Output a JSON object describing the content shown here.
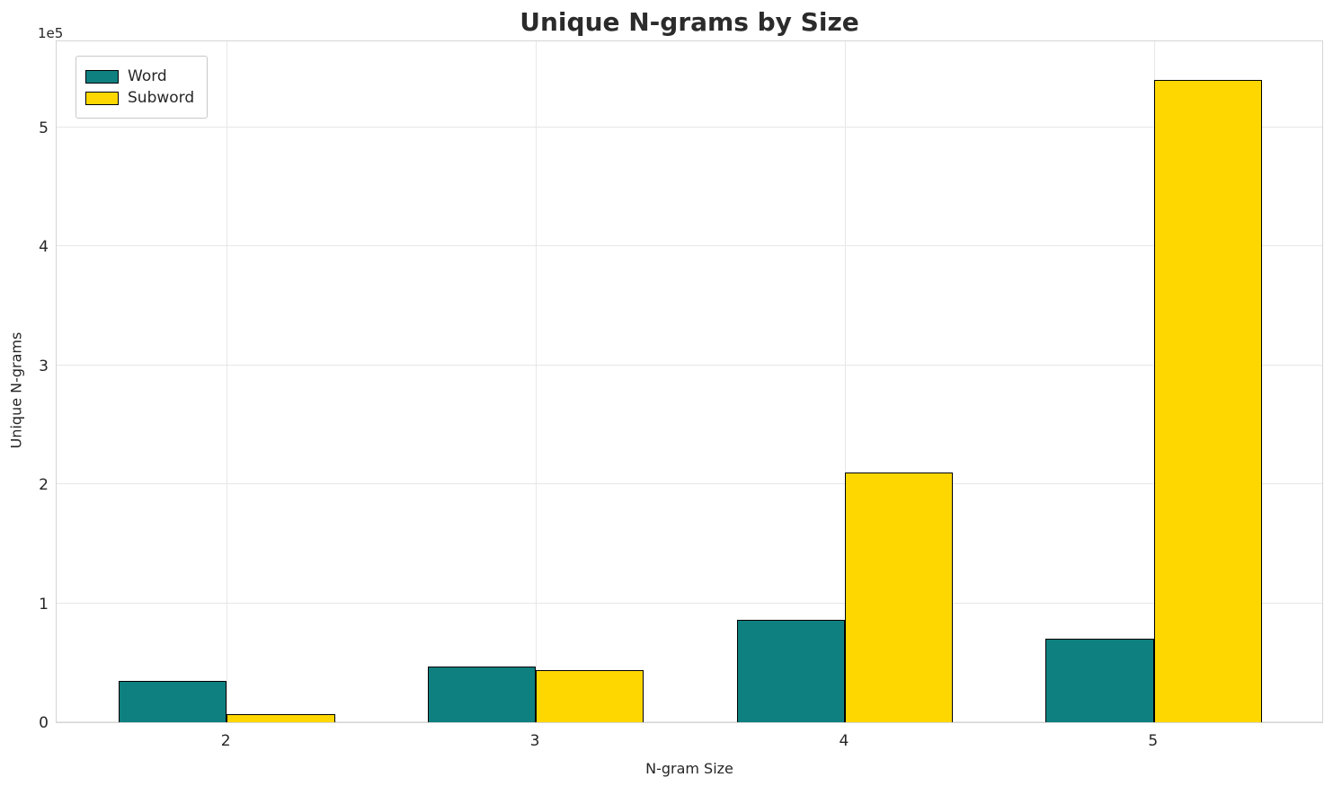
{
  "title": "Unique N-grams by Size",
  "offset_label": "1e5",
  "chart_data": {
    "type": "bar",
    "categories": [
      "2",
      "3",
      "4",
      "5"
    ],
    "series": [
      {
        "name": "Word",
        "color": "#0f8080",
        "values": [
          35000,
          47000,
          86000,
          70000
        ]
      },
      {
        "name": "Subword",
        "color": "#ffd700",
        "values": [
          7000,
          44000,
          210000,
          540000
        ]
      }
    ],
    "title": "Unique N-grams by Size",
    "xlabel": "N-gram Size",
    "ylabel": "Unique N-grams",
    "ylim": [
      0,
      574000
    ],
    "yticks": [
      0,
      100000,
      200000,
      300000,
      400000,
      500000
    ],
    "ytick_labels": [
      "0",
      "1",
      "2",
      "3",
      "4",
      "5"
    ],
    "y_offset_factor": "1e5",
    "grid": true,
    "bar_width": 0.35,
    "bar_edge_color": "#000000",
    "legend_position": "upper left"
  }
}
